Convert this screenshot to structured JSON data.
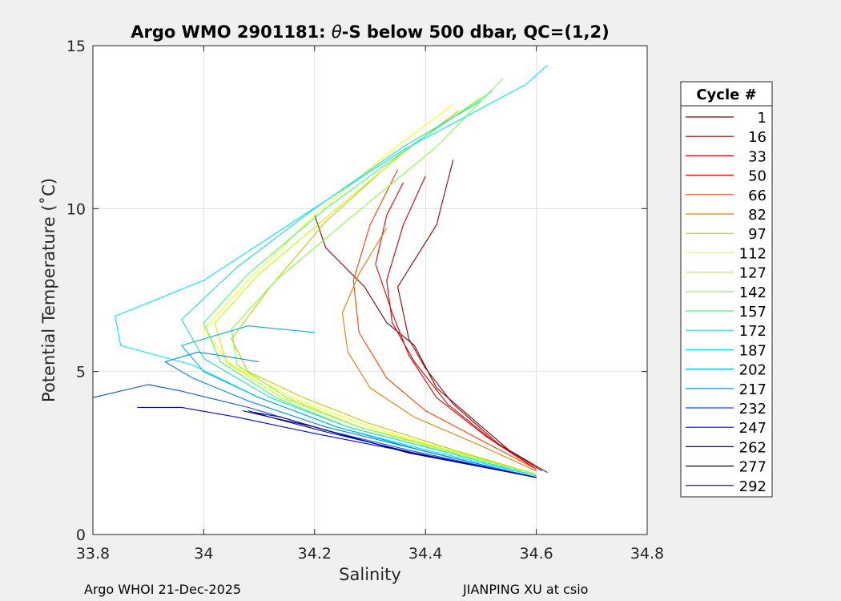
{
  "chart_data": {
    "type": "line",
    "title_prefix": "Argo WMO 2901181: ",
    "title_theta": "θ",
    "title_suffix": "-S below 500 dbar,  QC=(1,2)",
    "xlabel": "Salinity",
    "ylabel": "Potential Temperature (˚C)",
    "xlim": [
      33.8,
      34.8
    ],
    "ylim": [
      0,
      15
    ],
    "xticks": [
      33.8,
      34,
      34.2,
      34.4,
      34.6,
      34.8
    ],
    "xtick_labels": [
      "33.8",
      "34",
      "34.2",
      "34.4",
      "34.6",
      "34.8"
    ],
    "yticks": [
      0,
      5,
      10,
      15
    ],
    "ytick_labels": [
      "0",
      "5",
      "10",
      "15"
    ],
    "grid": true,
    "legend_title": "Cycle #",
    "legend_position": "right-outside",
    "series": [
      {
        "name": "1",
        "color": "#800000",
        "x": [
          34.62,
          34.55,
          34.42,
          34.38,
          34.33,
          34.29,
          34.22,
          34.2
        ],
        "y": [
          1.9,
          2.6,
          4.5,
          5.8,
          6.5,
          7.6,
          8.8,
          9.8
        ]
      },
      {
        "name": "16",
        "color": "#990000",
        "x": [
          34.61,
          34.53,
          34.45,
          34.4,
          34.37,
          34.35,
          34.42,
          34.45
        ],
        "y": [
          1.95,
          2.8,
          4.0,
          5.1,
          6.0,
          7.6,
          9.5,
          11.5
        ]
      },
      {
        "name": "33",
        "color": "#cc0000",
        "x": [
          34.6,
          34.52,
          34.44,
          34.38,
          34.34,
          34.33,
          34.36,
          34.4
        ],
        "y": [
          2.0,
          2.9,
          4.0,
          5.3,
          6.5,
          7.8,
          9.5,
          11.0
        ]
      },
      {
        "name": "50",
        "color": "#e80000",
        "x": [
          34.6,
          34.51,
          34.42,
          34.37,
          34.34,
          34.31,
          34.33,
          34.36
        ],
        "y": [
          2.0,
          3.0,
          4.2,
          5.5,
          6.8,
          8.3,
          9.8,
          10.8
        ]
      },
      {
        "name": "66",
        "color": "#ff4000",
        "x": [
          34.6,
          34.5,
          34.4,
          34.33,
          34.28,
          34.27,
          34.3,
          34.35
        ],
        "y": [
          2.0,
          2.9,
          3.8,
          4.8,
          6.2,
          7.8,
          9.5,
          11.2
        ]
      },
      {
        "name": "82",
        "color": "#d98000",
        "x": [
          34.6,
          34.49,
          34.38,
          34.3,
          34.26,
          34.25,
          34.28,
          34.33
        ],
        "y": [
          1.95,
          2.8,
          3.6,
          4.5,
          5.6,
          6.8,
          8.0,
          9.4
        ]
      },
      {
        "name": "97",
        "color": "#c8c800",
        "x": [
          34.6,
          34.45,
          34.3,
          34.18,
          34.08,
          34.05,
          34.12,
          34.22,
          34.35,
          34.46
        ],
        "y": [
          1.85,
          2.6,
          3.4,
          4.2,
          5.0,
          6.0,
          7.6,
          9.6,
          11.6,
          13.0
        ]
      },
      {
        "name": "112",
        "color": "#ffff00",
        "x": [
          34.6,
          34.44,
          34.3,
          34.16,
          34.05,
          34.0,
          34.08,
          34.2,
          34.34,
          34.45
        ],
        "y": [
          1.85,
          2.6,
          3.3,
          4.2,
          5.2,
          6.3,
          7.8,
          9.8,
          11.8,
          13.2
        ]
      },
      {
        "name": "127",
        "color": "#c0ff00",
        "x": [
          34.6,
          34.44,
          34.28,
          34.14,
          34.04,
          34.02,
          34.1,
          34.24,
          34.38,
          34.5
        ],
        "y": [
          1.85,
          2.6,
          3.3,
          4.2,
          5.3,
          6.5,
          8.0,
          10.0,
          12.0,
          13.4
        ]
      },
      {
        "name": "142",
        "color": "#80ff40",
        "x": [
          34.6,
          34.43,
          34.28,
          34.15,
          34.06,
          34.05,
          34.13,
          34.27,
          34.42,
          34.54
        ],
        "y": [
          1.85,
          2.6,
          3.3,
          4.2,
          5.2,
          6.3,
          7.8,
          9.8,
          11.9,
          14.0
        ]
      },
      {
        "name": "157",
        "color": "#40ff80",
        "x": [
          34.6,
          34.42,
          34.26,
          34.13,
          34.03,
          34.0,
          34.08,
          34.22,
          34.38,
          34.52
        ],
        "y": [
          1.8,
          2.6,
          3.3,
          4.2,
          5.3,
          6.5,
          8.0,
          10.0,
          12.0,
          13.6
        ]
      },
      {
        "name": "172",
        "color": "#20e0c0",
        "x": [
          34.6,
          34.42,
          34.26,
          34.12,
          34.0,
          33.96,
          34.06,
          34.2,
          34.36,
          34.5
        ],
        "y": [
          1.8,
          2.6,
          3.3,
          4.2,
          5.4,
          6.6,
          8.2,
          10.0,
          11.9,
          13.3
        ]
      },
      {
        "name": "187",
        "color": "#00e6ff",
        "x": [
          34.6,
          34.4,
          34.24,
          34.1,
          33.98,
          33.85,
          33.84,
          34.0,
          34.18,
          34.36,
          34.58,
          34.62
        ],
        "y": [
          1.8,
          2.6,
          3.3,
          4.2,
          5.2,
          5.8,
          6.7,
          7.8,
          9.8,
          11.8,
          13.8,
          14.4
        ]
      },
      {
        "name": "202",
        "color": "#00b0f0",
        "x": [
          34.6,
          34.4,
          34.24,
          34.1,
          34.0,
          33.96,
          34.08,
          34.2
        ],
        "y": [
          1.75,
          2.55,
          3.3,
          4.2,
          5.0,
          5.8,
          6.4,
          6.2
        ]
      },
      {
        "name": "217",
        "color": "#0080ff",
        "x": [
          34.6,
          34.4,
          34.22,
          34.08,
          33.98,
          33.93,
          33.99,
          34.1
        ],
        "y": [
          1.75,
          2.55,
          3.3,
          4.1,
          4.8,
          5.3,
          5.6,
          5.3
        ]
      },
      {
        "name": "232",
        "color": "#0050ff",
        "x": [
          34.6,
          34.38,
          34.22,
          34.08,
          33.96,
          33.9,
          33.8
        ],
        "y": [
          1.75,
          2.55,
          3.2,
          3.9,
          4.4,
          4.6,
          4.2
        ]
      },
      {
        "name": "247",
        "color": "#0000ff",
        "x": [
          34.6,
          34.38,
          34.2,
          34.06,
          33.96,
          33.88
        ],
        "y": [
          1.75,
          2.5,
          3.1,
          3.6,
          3.9,
          3.9
        ]
      },
      {
        "name": "262",
        "color": "#0000b0",
        "x": [
          34.6,
          34.38,
          34.22,
          34.12,
          34.07
        ],
        "y": [
          1.75,
          2.5,
          3.15,
          3.6,
          3.8
        ]
      },
      {
        "name": "277",
        "color": "#000060",
        "x": [
          34.6,
          34.36,
          34.2,
          34.12,
          34.08
        ],
        "y": [
          1.75,
          2.55,
          3.3,
          3.6,
          3.8
        ]
      },
      {
        "name": "292",
        "color": "#00008b",
        "x": [
          34.6,
          34.37,
          34.22,
          34.14,
          34.09
        ],
        "y": [
          1.75,
          2.5,
          3.2,
          3.6,
          3.75
        ]
      }
    ]
  },
  "footer": {
    "left": "Argo WHOI 21-Dec-2025",
    "right": "JIANPING XU at csio"
  }
}
